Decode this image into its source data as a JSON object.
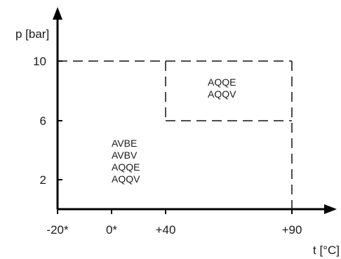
{
  "diagram": {
    "y_axis": {
      "label": "p [bar]"
    },
    "x_axis": {
      "label": "t [°C]"
    },
    "y_ticks": [
      {
        "value": 10,
        "label": "10"
      },
      {
        "value": 6,
        "label": "6"
      },
      {
        "value": 2,
        "label": "2"
      }
    ],
    "x_ticks": [
      {
        "value": -20,
        "label": "-20*"
      },
      {
        "value": 0,
        "label": "0*"
      },
      {
        "value": 40,
        "label": "+40"
      },
      {
        "value": 90,
        "label": "+90"
      }
    ],
    "outer_region": {
      "t_range": [
        -20,
        90
      ],
      "p_range": [
        0,
        10
      ],
      "labels": [
        "AVBE",
        "AVBV",
        "AQQE",
        "AQQV"
      ]
    },
    "inner_region": {
      "t_range": [
        40,
        90
      ],
      "p_range": [
        6,
        10
      ],
      "labels": [
        "AQQE",
        "AQQV"
      ]
    }
  }
}
